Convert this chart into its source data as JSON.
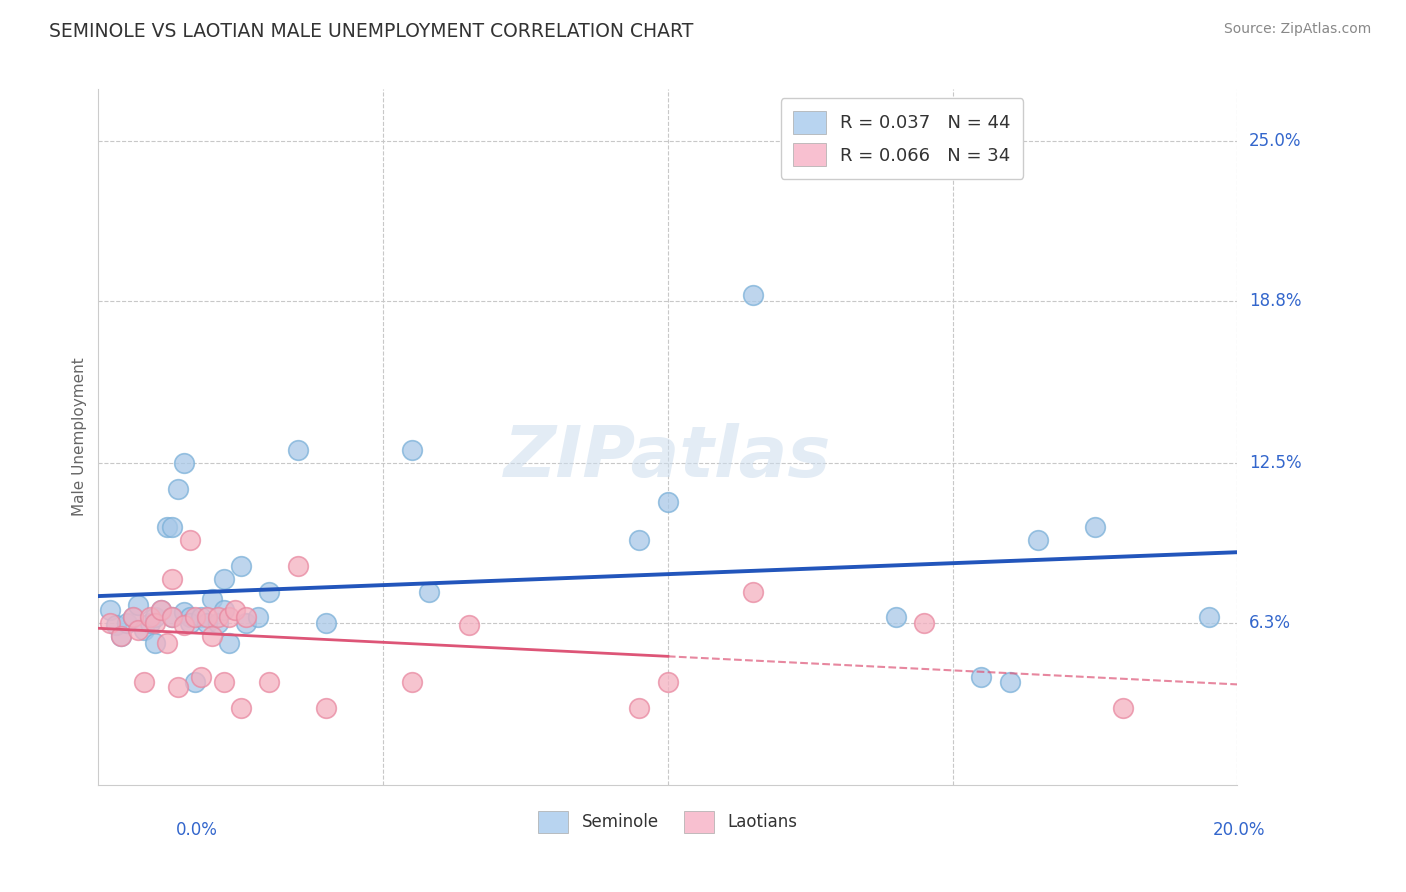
{
  "title": "SEMINOLE VS LAOTIAN MALE UNEMPLOYMENT CORRELATION CHART",
  "source": "Source: ZipAtlas.com",
  "ylabel": "Male Unemployment",
  "xlim": [
    0,
    0.2
  ],
  "ylim": [
    0,
    0.27
  ],
  "ytick_positions": [
    0.063,
    0.125,
    0.188,
    0.25
  ],
  "ytick_labels": [
    "6.3%",
    "12.5%",
    "18.8%",
    "25.0%"
  ],
  "grid_color": "#c8c8c8",
  "background_color": "#ffffff",
  "seminole_color_face": "#a8c8e8",
  "seminole_color_edge": "#7ab0d8",
  "laotian_color_face": "#f4b0c0",
  "laotian_color_edge": "#e888a0",
  "seminole_R": 0.037,
  "seminole_N": 44,
  "laotian_R": 0.066,
  "laotian_N": 34,
  "blue_line_color": "#2255bb",
  "pink_line_color": "#dd5577",
  "seminole_x": [
    0.002,
    0.003,
    0.004,
    0.005,
    0.006,
    0.007,
    0.008,
    0.009,
    0.01,
    0.01,
    0.011,
    0.012,
    0.013,
    0.013,
    0.014,
    0.015,
    0.015,
    0.016,
    0.016,
    0.017,
    0.018,
    0.019,
    0.02,
    0.021,
    0.022,
    0.022,
    0.023,
    0.025,
    0.026,
    0.028,
    0.03,
    0.035,
    0.04,
    0.055,
    0.058,
    0.095,
    0.1,
    0.115,
    0.14,
    0.155,
    0.16,
    0.165,
    0.175,
    0.195
  ],
  "seminole_y": [
    0.068,
    0.062,
    0.058,
    0.063,
    0.065,
    0.07,
    0.06,
    0.063,
    0.065,
    0.055,
    0.068,
    0.1,
    0.1,
    0.065,
    0.115,
    0.067,
    0.125,
    0.065,
    0.063,
    0.04,
    0.065,
    0.063,
    0.072,
    0.063,
    0.08,
    0.068,
    0.055,
    0.085,
    0.063,
    0.065,
    0.075,
    0.13,
    0.063,
    0.13,
    0.075,
    0.095,
    0.11,
    0.19,
    0.065,
    0.042,
    0.04,
    0.095,
    0.1,
    0.065
  ],
  "laotian_x": [
    0.002,
    0.004,
    0.006,
    0.007,
    0.008,
    0.009,
    0.01,
    0.011,
    0.012,
    0.013,
    0.013,
    0.014,
    0.015,
    0.016,
    0.017,
    0.018,
    0.019,
    0.02,
    0.021,
    0.022,
    0.023,
    0.024,
    0.025,
    0.026,
    0.03,
    0.035,
    0.04,
    0.055,
    0.065,
    0.095,
    0.1,
    0.115,
    0.145,
    0.18
  ],
  "laotian_y": [
    0.063,
    0.058,
    0.065,
    0.06,
    0.04,
    0.065,
    0.063,
    0.068,
    0.055,
    0.08,
    0.065,
    0.038,
    0.062,
    0.095,
    0.065,
    0.042,
    0.065,
    0.058,
    0.065,
    0.04,
    0.065,
    0.068,
    0.03,
    0.065,
    0.04,
    0.085,
    0.03,
    0.04,
    0.062,
    0.03,
    0.04,
    0.075,
    0.063,
    0.03
  ]
}
